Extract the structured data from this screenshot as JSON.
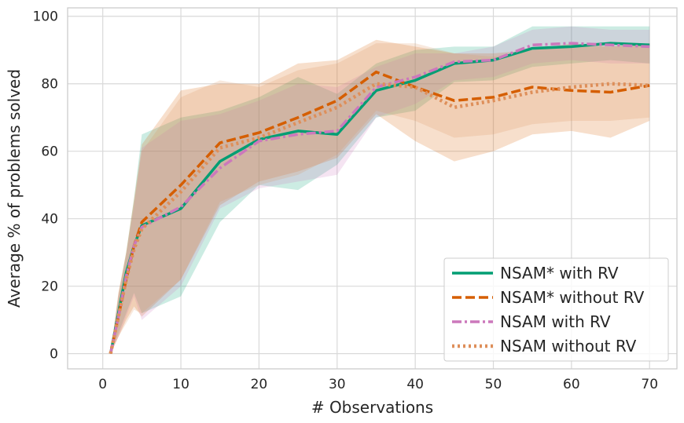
{
  "chart_data": {
    "type": "line",
    "title": "",
    "xlabel": "# Observations",
    "ylabel": "Average % of problems solved",
    "xlim": [
      -4.5,
      73.5
    ],
    "ylim": [
      -4.5,
      102.5
    ],
    "xticks": [
      0,
      10,
      20,
      30,
      40,
      50,
      60,
      70
    ],
    "yticks": [
      0,
      20,
      40,
      60,
      80,
      100
    ],
    "grid": true,
    "legend_position": "bottom-right",
    "x": [
      1,
      2,
      3,
      4,
      5,
      10,
      15,
      20,
      25,
      30,
      35,
      40,
      45,
      50,
      55,
      60,
      65,
      70
    ],
    "series": [
      {
        "name": "NSAM* with RV",
        "color": "#029e73",
        "dash": "solid",
        "values": [
          0,
          12,
          24,
          32,
          38,
          43,
          57,
          63.5,
          66,
          65,
          78,
          81,
          86,
          87,
          90.5,
          91,
          92,
          91.5
        ],
        "lower": [
          0,
          6,
          12,
          18,
          12,
          17,
          39,
          50,
          48.5,
          56,
          70,
          72,
          80.5,
          81,
          85,
          86,
          87,
          86
        ],
        "upper": [
          0,
          17,
          30,
          46,
          65,
          70,
          72,
          76,
          82,
          77,
          86,
          90,
          91,
          91,
          97,
          97,
          97,
          97
        ]
      },
      {
        "name": "NSAM* without RV",
        "color": "#d55e00",
        "dash": "dashed",
        "values": [
          0,
          11,
          22,
          32,
          39,
          50,
          62.5,
          65.5,
          70,
          75,
          83.5,
          79,
          75,
          76,
          79,
          78,
          77.5,
          79.5
        ],
        "lower": [
          0,
          5,
          10,
          14,
          11,
          22,
          44,
          51,
          54,
          58,
          71,
          63,
          57,
          60,
          65,
          66,
          64,
          69
        ],
        "upper": [
          0,
          18,
          30,
          46,
          62,
          78,
          80,
          80,
          86,
          87,
          93,
          91,
          89,
          89,
          90,
          92,
          91,
          92
        ]
      },
      {
        "name": "NSAM with RV",
        "color": "#cc78bc",
        "dash": "dashdot",
        "values": [
          0,
          11,
          23,
          32,
          37.5,
          43.5,
          55,
          63,
          65,
          66,
          79,
          82,
          86.5,
          87,
          91.5,
          92,
          91.5,
          91
        ],
        "lower": [
          0,
          5,
          11,
          17,
          10,
          20,
          43,
          49,
          51,
          53,
          70,
          74,
          81,
          82,
          86,
          87,
          86,
          86
        ],
        "upper": [
          0,
          17,
          29,
          44,
          61,
          69,
          71,
          75,
          80,
          79,
          85,
          89,
          89,
          91,
          96,
          97,
          96,
          96
        ]
      },
      {
        "name": "NSAM without RV",
        "color": "#de8f5a",
        "dash": "dotted",
        "values": [
          0,
          11,
          22,
          31,
          37,
          48,
          61,
          64,
          68.5,
          73,
          80,
          79,
          73,
          75,
          77.5,
          79,
          80,
          79.5
        ],
        "lower": [
          0,
          5,
          9,
          13,
          12,
          22,
          45,
          50,
          53,
          59,
          72,
          69,
          64,
          65,
          68,
          69,
          69,
          70
        ],
        "upper": [
          0,
          18,
          30,
          45,
          60,
          76,
          81,
          79,
          84,
          86,
          92,
          92,
          89,
          88,
          90,
          91,
          91,
          92
        ]
      }
    ]
  }
}
